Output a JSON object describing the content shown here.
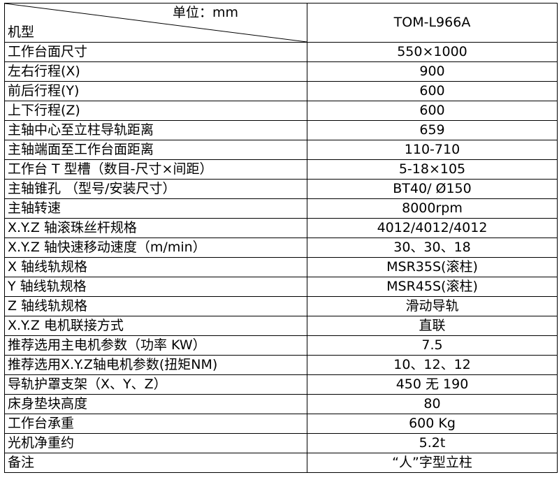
{
  "header": {
    "unit_label": "单位：mm",
    "model_label": "机型",
    "model": "TOM-L966A"
  },
  "rows": [
    {
      "label": "工作台面尺寸",
      "value": "550×1000"
    },
    {
      "label": "左右行程(X)",
      "value": "900"
    },
    {
      "label": "前后行程(Y)",
      "value": "600"
    },
    {
      "label": "上下行程(Z)",
      "value": "600"
    },
    {
      "label": "主轴中心至立柱导轨距离",
      "value": "659"
    },
    {
      "label": "主轴端面至工作台面距离",
      "value": "110-710"
    },
    {
      "label": "工作台 T 型槽（数目-尺寸×间距）",
      "value": "5-18×105"
    },
    {
      "label": "主轴锥孔 （型号/安装尺寸）",
      "value": "BT40/ Ø150"
    },
    {
      "label": "主轴转速",
      "value": "8000rpm"
    },
    {
      "label": "X.Y.Z 轴滚珠丝杆规格",
      "value": "4012/4012/4012"
    },
    {
      "label": "X.Y.Z 轴快速移动速度（m/min）",
      "value": "30、30、18"
    },
    {
      "label": "X 轴线轨规格",
      "value": "MSR35S(滚柱)"
    },
    {
      "label": "Y 轴线轨规格",
      "value": "MSR45S(滚柱)"
    },
    {
      "label": "Z 轴线轨规格",
      "value": "滑动导轨"
    },
    {
      "label": "X.Y.Z 电机联接方式",
      "value": "直联"
    },
    {
      "label": "推荐选用主电机参数（功率 KW）",
      "value": "7.5"
    },
    {
      "label": "推荐选用X.Y.Z轴电机参数(扭矩NM)",
      "value": "10、12、12"
    },
    {
      "label": "导轨护罩支架（X、Y、Z）",
      "value": "450 无 190"
    },
    {
      "label": "床身垫块高度",
      "value": "80"
    },
    {
      "label": "工作台承重",
      "value": "600 Kg"
    },
    {
      "label": "光机净重约",
      "value": "5.2t"
    },
    {
      "label": "备注",
      "value": "“人”字型立柱"
    }
  ]
}
